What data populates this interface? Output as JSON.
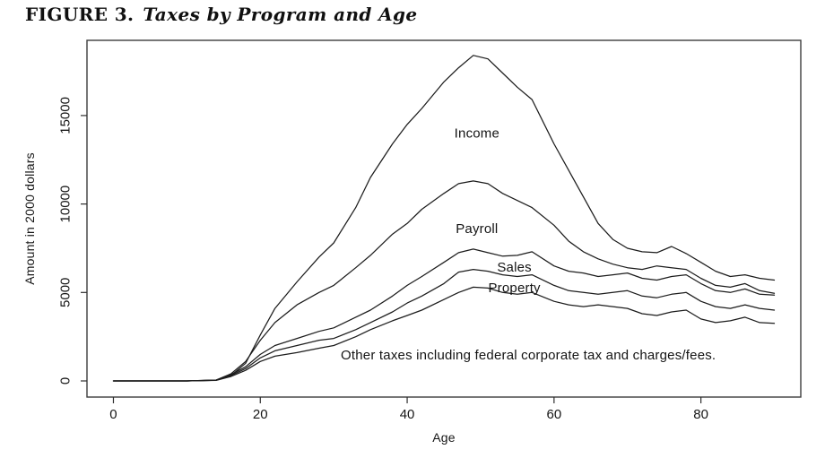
{
  "figure": {
    "label": "FIGURE 3.",
    "title": "Taxes by Program and Age"
  },
  "colors": {
    "line": "#1c1c1c",
    "border": "#3d3d3d",
    "text": "#161616",
    "background": "#ffffff"
  },
  "chart_data": {
    "type": "line",
    "title": "Taxes by Program and Age",
    "xlabel": "Age",
    "ylabel": "Amount in 2000 dollars",
    "xticks": [
      0,
      20,
      40,
      60,
      80
    ],
    "yticks": [
      0,
      5000,
      10000,
      15000
    ],
    "xlim": [
      -3.6,
      93.6
    ],
    "ylim": [
      -912,
      19251
    ],
    "grid": false,
    "legend_position": "inline-annotations",
    "x": [
      0,
      5,
      10,
      14,
      16,
      18,
      20,
      22,
      25,
      28,
      30,
      33,
      35,
      38,
      40,
      42,
      45,
      47,
      49,
      51,
      53,
      55,
      57,
      60,
      62,
      64,
      66,
      68,
      70,
      72,
      74,
      76,
      78,
      80,
      82,
      84,
      86,
      88,
      90
    ],
    "series": [
      {
        "name": "Income",
        "values": [
          0,
          0,
          0,
          50,
          300,
          1000,
          2600,
          4100,
          5600,
          7000,
          7800,
          9800,
          11500,
          13400,
          14500,
          15400,
          16900,
          17700,
          18400,
          18200,
          17400,
          16600,
          15900,
          13400,
          11900,
          10400,
          8900,
          8000,
          7500,
          7300,
          7250,
          7600,
          7200,
          6700,
          6200,
          5900,
          6000,
          5800,
          5700
        ]
      },
      {
        "name": "Payroll",
        "values": [
          0,
          0,
          0,
          50,
          400,
          1100,
          2300,
          3300,
          4300,
          5000,
          5400,
          6400,
          7100,
          8300,
          8900,
          9700,
          10600,
          11150,
          11300,
          11150,
          10600,
          10200,
          9800,
          8800,
          7900,
          7300,
          6900,
          6600,
          6400,
          6300,
          6500,
          6400,
          6300,
          5800,
          5400,
          5300,
          5500,
          5100,
          4950
        ]
      },
      {
        "name": "Sales",
        "values": [
          0,
          0,
          0,
          40,
          350,
          800,
          1500,
          2000,
          2400,
          2800,
          3000,
          3600,
          4000,
          4800,
          5400,
          5900,
          6700,
          7250,
          7450,
          7250,
          7050,
          7100,
          7300,
          6500,
          6200,
          6100,
          5900,
          6000,
          6100,
          5800,
          5700,
          5900,
          6000,
          5500,
          5100,
          5000,
          5200,
          4900,
          4850
        ]
      },
      {
        "name": "Property",
        "values": [
          0,
          0,
          0,
          40,
          300,
          700,
          1300,
          1700,
          2000,
          2300,
          2400,
          2900,
          3300,
          3900,
          4400,
          4800,
          5500,
          6150,
          6300,
          6200,
          6000,
          5900,
          6000,
          5400,
          5100,
          5000,
          4900,
          5000,
          5100,
          4800,
          4700,
          4900,
          5000,
          4500,
          4200,
          4100,
          4300,
          4100,
          4000
        ]
      },
      {
        "name": "Other taxes including federal corporate tax and charges/fees.",
        "values": [
          0,
          0,
          0,
          30,
          250,
          600,
          1100,
          1400,
          1600,
          1850,
          2000,
          2500,
          2900,
          3400,
          3700,
          4000,
          4600,
          5000,
          5300,
          5250,
          5000,
          4900,
          5000,
          4500,
          4300,
          4200,
          4300,
          4200,
          4100,
          3800,
          3700,
          3900,
          4000,
          3500,
          3300,
          3400,
          3600,
          3300,
          3250
        ]
      }
    ],
    "annotations": [
      {
        "slug": "income",
        "text": "Income",
        "x": 49.5,
        "y": 14000
      },
      {
        "slug": "payroll",
        "text": "Payroll",
        "x": 49.5,
        "y": 8600
      },
      {
        "slug": "sales",
        "text": "Sales",
        "x": 54.6,
        "y": 6430
      },
      {
        "slug": "property",
        "text": "Property",
        "x": 54.6,
        "y": 5270
      },
      {
        "slug": "other-taxes",
        "text": "Other taxes including federal corporate tax and charges/fees.",
        "x": 56.5,
        "y": 1470
      }
    ]
  }
}
